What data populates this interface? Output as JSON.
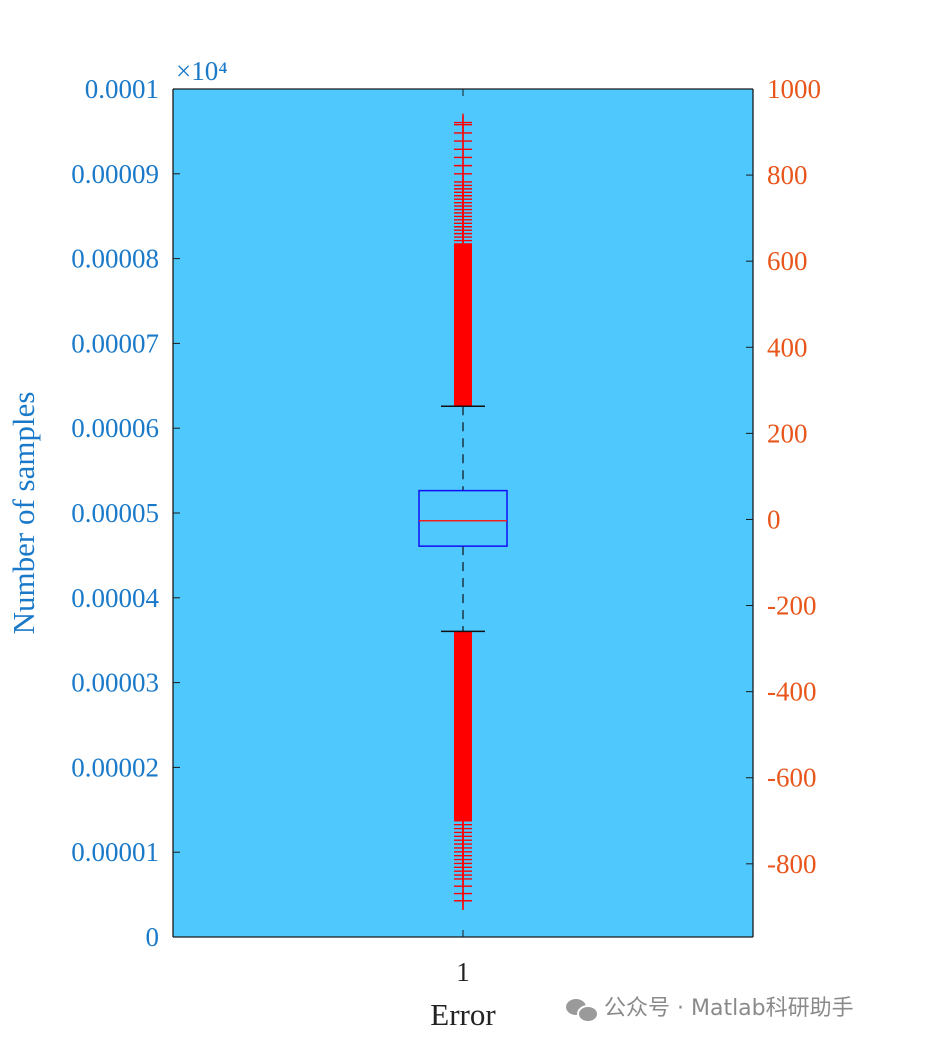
{
  "chart_data": {
    "type": "box",
    "xlabel": "Error",
    "ylabel_left": "Number of samples",
    "ylabel_left_multiplier": "×10⁴",
    "x_categories": [
      "1"
    ],
    "left_axis": {
      "ylim": [
        0,
        0.0001
      ],
      "ticks": [
        "0",
        "0.00001",
        "0.00002",
        "0.00003",
        "0.00004",
        "0.00005",
        "0.00006",
        "0.00007",
        "0.00008",
        "0.00009",
        "0.0001"
      ]
    },
    "right_axis": {
      "ylim": [
        -970,
        1000
      ],
      "ticks": [
        "-800",
        "-600",
        "-400",
        "-200",
        "0",
        "200",
        "400",
        "600",
        "800",
        "1000"
      ]
    },
    "box": {
      "median": -3,
      "q1": -62,
      "q3": 67,
      "whisker_low": -260,
      "whisker_high": 263,
      "outliers_low_range": [
        -886,
        -260
      ],
      "outliers_high_range": [
        263,
        922
      ]
    },
    "grid": false,
    "legend": "none",
    "colors": {
      "axes_background": "#4fc8fe",
      "box_edge": "#1010f5",
      "median_line": "#f31f1f",
      "outlier_marker": "#ff0000",
      "whisker": "#111111",
      "left_axis_text": "#1a7ac9",
      "right_axis_text": "#e8561c"
    }
  },
  "watermark": {
    "icon": "wechat-icon",
    "text": "公众号 · Matlab科研助手"
  }
}
